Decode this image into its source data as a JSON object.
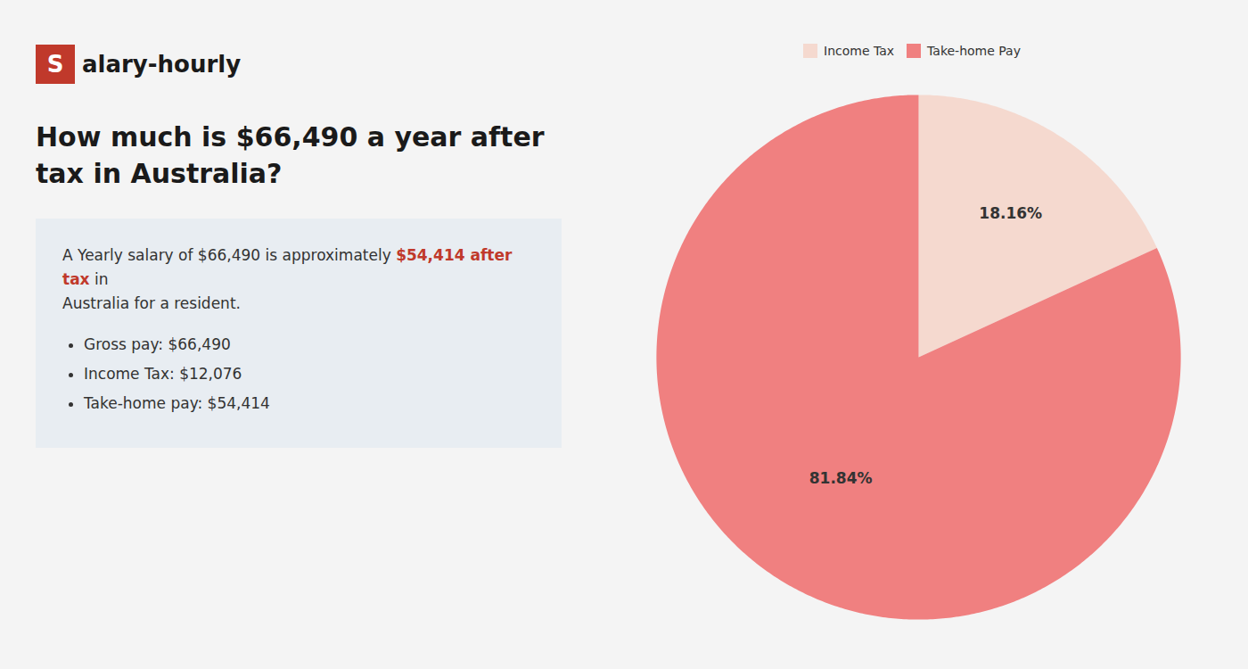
{
  "chart_data": {
    "type": "pie",
    "title": "How much is $66,490 a year after tax in Australia?",
    "categories": [
      "Income Tax",
      "Take-home Pay"
    ],
    "values": [
      18.16,
      81.84
    ],
    "value_labels": [
      "18.16%",
      "81.84%"
    ],
    "colors": [
      "#f5d9cf",
      "#f08080"
    ],
    "data_labels": true,
    "legend": "top",
    "annotations": [
      {
        "text": "S",
        "color": "#c0392b"
      },
      {
        "text": "alary-hourly"
      },
      {
        "text": "A Yearly salary of $66,490 is approximately "
      },
      {
        "text": "$54,414 after tax",
        "color": "#c0392b"
      },
      {
        "text": " in"
      },
      {
        "text": "Australia for a resident."
      },
      {
        "text": "Gross pay: $66,490"
      },
      {
        "text": "Income Tax: $12,076"
      },
      {
        "text": "Take-home pay: $54,414"
      }
    ]
  }
}
